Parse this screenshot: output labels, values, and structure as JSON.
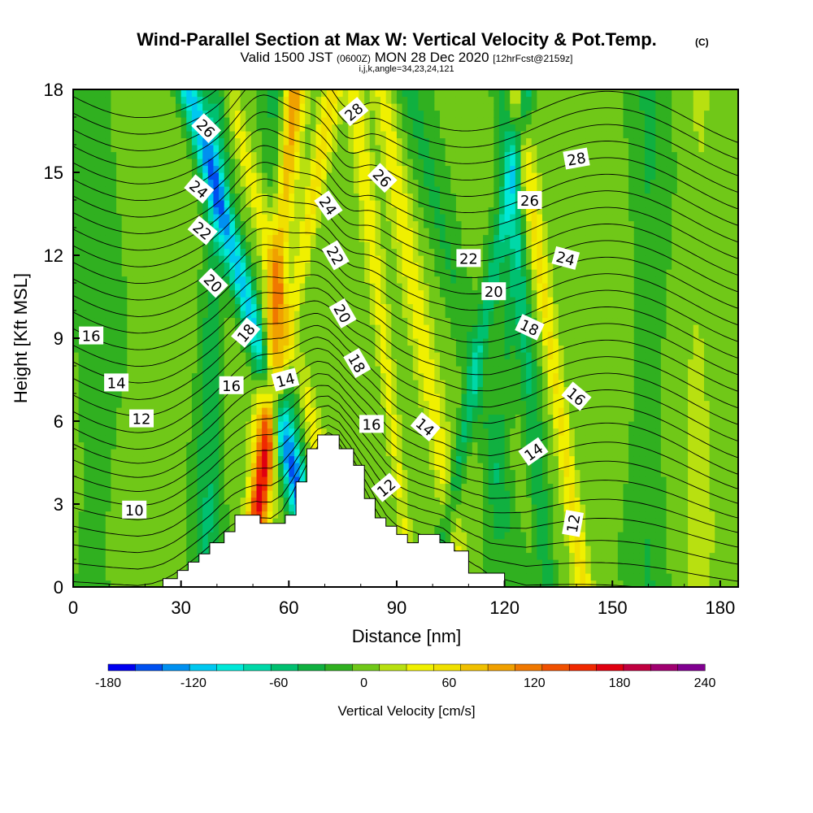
{
  "title": {
    "main": "Wind-Parallel Section at Max W: Vertical Velocity & Pot.Temp.",
    "copyright": "(C)",
    "valid_prefix": "Valid 1500 JST",
    "valid_utc": "(0600Z)",
    "valid_date": "MON 28 Dec 2020",
    "forecast": "[12hrFcst@2159z]",
    "ijk": "i,j,k,angle=34,23,24,121"
  },
  "chart_data": {
    "type": "heatmap",
    "xlabel": "Distance [nm]",
    "ylabel": "Height [Kft MSL]",
    "xlim": [
      0,
      185
    ],
    "ylim": [
      0,
      18
    ],
    "x_ticks": [
      0,
      30,
      60,
      90,
      120,
      150,
      180
    ],
    "y_ticks": [
      0,
      3,
      6,
      9,
      12,
      15,
      18
    ],
    "x_tick_labels": [
      "0",
      "30",
      "60",
      "90",
      "120",
      "150",
      "180"
    ],
    "y_tick_labels": [
      "0",
      "3",
      "6",
      "9",
      "12",
      "15",
      "18"
    ],
    "colorbar": {
      "label": "Vertical Velocity [cm/s]",
      "min": -180,
      "max": 240,
      "step": 20,
      "tick_values": [
        -180,
        -120,
        -60,
        0,
        60,
        120,
        180,
        240
      ],
      "tick_labels": [
        "-180",
        "-120",
        "-60",
        "0",
        "60",
        "120",
        "180",
        "240"
      ],
      "colors": [
        "#0000f0",
        "#0050f0",
        "#0090f0",
        "#00c8f0",
        "#00e8d8",
        "#00d8a8",
        "#00c070",
        "#10b040",
        "#30b020",
        "#70c818",
        "#b8e010",
        "#f0f000",
        "#f0e000",
        "#f0c000",
        "#f0a000",
        "#f07800",
        "#f05000",
        "#f02800",
        "#e00010",
        "#c00040",
        "#a00070",
        "#800090"
      ]
    },
    "terrain": [
      [
        25,
        0
      ],
      [
        25,
        0.3
      ],
      [
        29,
        0.3
      ],
      [
        29,
        0.6
      ],
      [
        32,
        0.6
      ],
      [
        32,
        0.9
      ],
      [
        35,
        0.9
      ],
      [
        35,
        1.2
      ],
      [
        38,
        1.2
      ],
      [
        38,
        1.6
      ],
      [
        42,
        1.6
      ],
      [
        42,
        2.0
      ],
      [
        45,
        2.0
      ],
      [
        45,
        2.6
      ],
      [
        52,
        2.6
      ],
      [
        52,
        2.3
      ],
      [
        59,
        2.3
      ],
      [
        59,
        2.6
      ],
      [
        62,
        2.6
      ],
      [
        62,
        3.8
      ],
      [
        65,
        3.8
      ],
      [
        65,
        5.0
      ],
      [
        68,
        5.0
      ],
      [
        68,
        5.5
      ],
      [
        74,
        5.5
      ],
      [
        74,
        5.0
      ],
      [
        78,
        5.0
      ],
      [
        78,
        4.4
      ],
      [
        81,
        4.4
      ],
      [
        81,
        3.2
      ],
      [
        84,
        3.2
      ],
      [
        84,
        2.5
      ],
      [
        87,
        2.5
      ],
      [
        87,
        2.2
      ],
      [
        90,
        2.2
      ],
      [
        90,
        1.9
      ],
      [
        93,
        1.9
      ],
      [
        93,
        1.6
      ],
      [
        96,
        1.6
      ],
      [
        96,
        1.9
      ],
      [
        102,
        1.9
      ],
      [
        102,
        1.6
      ],
      [
        106,
        1.6
      ],
      [
        106,
        1.3
      ],
      [
        110,
        1.3
      ],
      [
        110,
        0.5
      ],
      [
        120,
        0.5
      ],
      [
        120,
        0
      ]
    ],
    "wbands": [
      {
        "x": 37,
        "w": -45,
        "slope": 0.05,
        "width": 3.5
      },
      {
        "x": 50,
        "w": 115,
        "slope": 0.18,
        "width": 3.0
      },
      {
        "x": 47,
        "w": 60,
        "slope": 0.4,
        "width": 2.5
      },
      {
        "x": 70,
        "w": -120,
        "slope": -0.6,
        "width": 3.2
      },
      {
        "x": 78,
        "w": 45,
        "slope": -0.55,
        "width": 2.8
      },
      {
        "x": 63,
        "w": -40,
        "slope": -0.1,
        "width": 3.5
      },
      {
        "x": 94,
        "w": 40,
        "slope": -0.25,
        "width": 2.2
      },
      {
        "x": 101,
        "w": -55,
        "slope": 0.4,
        "width": 2.2
      },
      {
        "x": 108,
        "w": 40,
        "slope": -0.35,
        "width": 2.8
      },
      {
        "x": 116,
        "w": -25,
        "slope": 0.15,
        "width": 3.0
      },
      {
        "x": 125,
        "w": -30,
        "slope": -0.5,
        "width": 4.0
      },
      {
        "x": 132,
        "w": -45,
        "slope": -0.2,
        "width": 2.5
      },
      {
        "x": 142,
        "w": 60,
        "slope": -0.3,
        "width": 2.5
      },
      {
        "x": 160,
        "w": -25,
        "slope": 0.0,
        "width": 5.0
      },
      {
        "x": 174,
        "w": 15,
        "slope": 0.0,
        "width": 4.0
      },
      {
        "x": 6,
        "w": -20,
        "slope": 0.0,
        "width": 6.0
      }
    ],
    "isentrope_start_heights": [
      0.2,
      0.9,
      1.6,
      2.3,
      3.0,
      3.6,
      4.2,
      4.8,
      5.4,
      6.0,
      6.6,
      7.2,
      7.8,
      8.4,
      9.0,
      9.6,
      10.2,
      10.8,
      11.4,
      12.0,
      12.6,
      13.2,
      13.8,
      14.4,
      15.0,
      15.6,
      16.2,
      16.8,
      17.4,
      18.0
    ],
    "isentrope_labels": [
      {
        "text": "26",
        "x": 37,
        "y": 16.6,
        "rotate": 45
      },
      {
        "text": "24",
        "x": 35,
        "y": 14.4,
        "rotate": 40
      },
      {
        "text": "22",
        "x": 36,
        "y": 12.9,
        "rotate": 40
      },
      {
        "text": "20",
        "x": 39,
        "y": 11.0,
        "rotate": 45
      },
      {
        "text": "18",
        "x": 48,
        "y": 9.2,
        "rotate": -50
      },
      {
        "text": "16",
        "x": 44,
        "y": 7.3,
        "rotate": 0
      },
      {
        "text": "14",
        "x": 59,
        "y": 7.5,
        "rotate": -15
      },
      {
        "text": "16",
        "x": 5,
        "y": 9.1,
        "rotate": 0
      },
      {
        "text": "14",
        "x": 12,
        "y": 7.4,
        "rotate": 0
      },
      {
        "text": "12",
        "x": 19,
        "y": 6.1,
        "rotate": 0
      },
      {
        "text": "10",
        "x": 17,
        "y": 2.8,
        "rotate": 0
      },
      {
        "text": "28",
        "x": 78,
        "y": 17.2,
        "rotate": -40
      },
      {
        "text": "26",
        "x": 86,
        "y": 14.8,
        "rotate": 45
      },
      {
        "text": "24",
        "x": 71,
        "y": 13.8,
        "rotate": 55
      },
      {
        "text": "22",
        "x": 73,
        "y": 12.0,
        "rotate": 60
      },
      {
        "text": "20",
        "x": 75,
        "y": 9.9,
        "rotate": 60
      },
      {
        "text": "18",
        "x": 79,
        "y": 8.1,
        "rotate": 60
      },
      {
        "text": "16",
        "x": 83,
        "y": 5.9,
        "rotate": 0
      },
      {
        "text": "14",
        "x": 98,
        "y": 5.8,
        "rotate": 40
      },
      {
        "text": "12",
        "x": 87,
        "y": 3.6,
        "rotate": -40
      },
      {
        "text": "22",
        "x": 110,
        "y": 11.9,
        "rotate": 0
      },
      {
        "text": "20",
        "x": 117,
        "y": 10.7,
        "rotate": 0
      },
      {
        "text": "26",
        "x": 127,
        "y": 14.0,
        "rotate": 0
      },
      {
        "text": "28",
        "x": 140,
        "y": 15.5,
        "rotate": -10
      },
      {
        "text": "24",
        "x": 137,
        "y": 11.9,
        "rotate": 15
      },
      {
        "text": "18",
        "x": 127,
        "y": 9.4,
        "rotate": 25
      },
      {
        "text": "16",
        "x": 140,
        "y": 6.9,
        "rotate": 40
      },
      {
        "text": "14",
        "x": 128,
        "y": 4.9,
        "rotate": -35
      },
      {
        "text": "12",
        "x": 139,
        "y": 2.3,
        "rotate": -80
      }
    ]
  }
}
